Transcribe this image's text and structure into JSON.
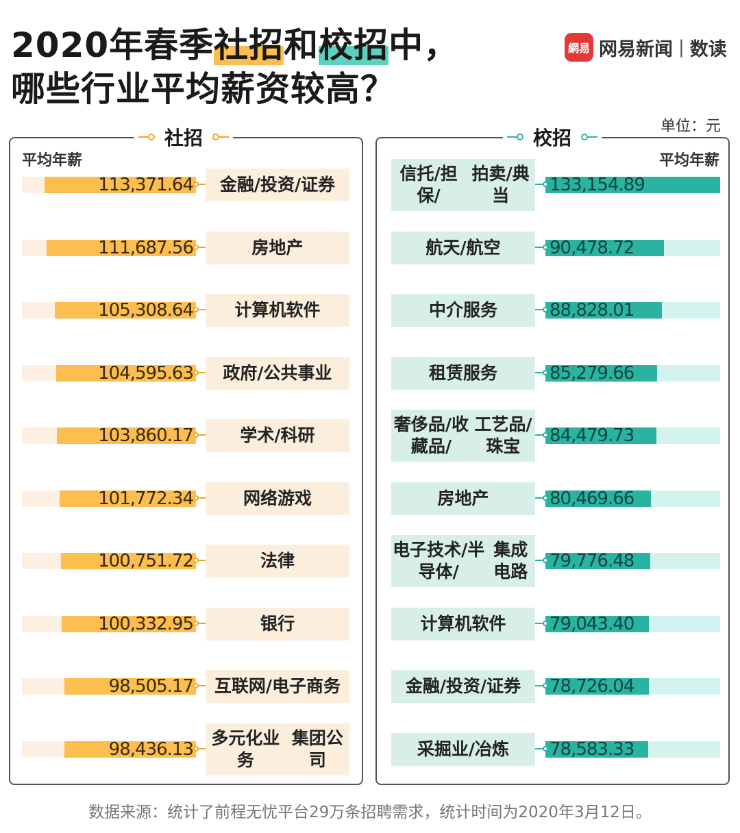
{
  "title": {
    "line1_pre": "2020年春季",
    "line1_hl1": "社招",
    "line1_mid": "和",
    "line1_hl2": "校招",
    "line1_post": "中，",
    "line2": "哪些行业平均薪资较高？"
  },
  "brand": {
    "badge": "網易",
    "name": "网易新闻",
    "sep": "|",
    "sub": "数读"
  },
  "unit": "单位：元",
  "colors": {
    "orange": "#fcbf4f",
    "orange_track": "#fdf0e2",
    "teal": "#2bb3a2",
    "teal_track": "#d5f3ee"
  },
  "chart_data": [
    {
      "type": "bar",
      "title": "社招",
      "ylabel": "平均年薪",
      "ylim": [
        0,
        130000
      ],
      "categories": [
        "金融/投资/证券",
        "房地产",
        "计算机软件",
        "政府/公共事业",
        "学术/科研",
        "网络游戏",
        "法律",
        "银行",
        "互联网/电子商务",
        "多元化业务集团公司"
      ],
      "values": [
        113371.64,
        111687.56,
        105308.64,
        104595.63,
        103860.17,
        101772.34,
        100751.72,
        100332.95,
        98505.17,
        98436.13
      ],
      "value_labels": [
        "113,371.64",
        "111,687.56",
        "105,308.64",
        "104,595.63",
        "103,860.17",
        "101,772.34",
        "100,751.72",
        "100,332.95",
        "98,505.17",
        "98,436.13"
      ]
    },
    {
      "type": "bar",
      "title": "校招",
      "ylabel": "平均年薪",
      "ylim": [
        0,
        133154.89
      ],
      "categories": [
        "信托/担保/拍卖/典当",
        "航天/航空",
        "中介服务",
        "租赁服务",
        "奢侈品/收藏品/工艺品/珠宝",
        "房地产",
        "电子技术/半导体/集成电路",
        "计算机软件",
        "金融/投资/证券",
        "采掘业/冶炼"
      ],
      "values": [
        133154.89,
        90478.72,
        88828.01,
        85279.66,
        84479.73,
        80469.66,
        79776.48,
        79043.4,
        78726.04,
        78583.33
      ],
      "value_labels": [
        "133,154.89",
        "90,478.72",
        "88,828.01",
        "85,279.66",
        "84,479.73",
        "80,469.66",
        "79,776.48",
        "79,043.40",
        "78,726.04",
        "78,583.33"
      ]
    }
  ],
  "left_labels": [
    [
      "金融/投资/证券"
    ],
    [
      "房地产"
    ],
    [
      "计算机软件"
    ],
    [
      "政府/公共事业"
    ],
    [
      "学术/科研"
    ],
    [
      "网络游戏"
    ],
    [
      "法律"
    ],
    [
      "银行"
    ],
    [
      "互联网/电子商务"
    ],
    [
      "多元化业务",
      "集团公司"
    ]
  ],
  "right_labels": [
    [
      "信托/担保/",
      "拍卖/典当"
    ],
    [
      "航天/航空"
    ],
    [
      "中介服务"
    ],
    [
      "租赁服务"
    ],
    [
      "奢侈品/收藏品/",
      "工艺品/珠宝"
    ],
    [
      "房地产"
    ],
    [
      "电子技术/半导体/",
      "集成电路"
    ],
    [
      "计算机软件"
    ],
    [
      "金融/投资/证券"
    ],
    [
      "采掘业/冶炼"
    ]
  ],
  "source": "数据来源：统计了前程无忧平台29万条招聘需求，统计时间为2020年3月12日。"
}
